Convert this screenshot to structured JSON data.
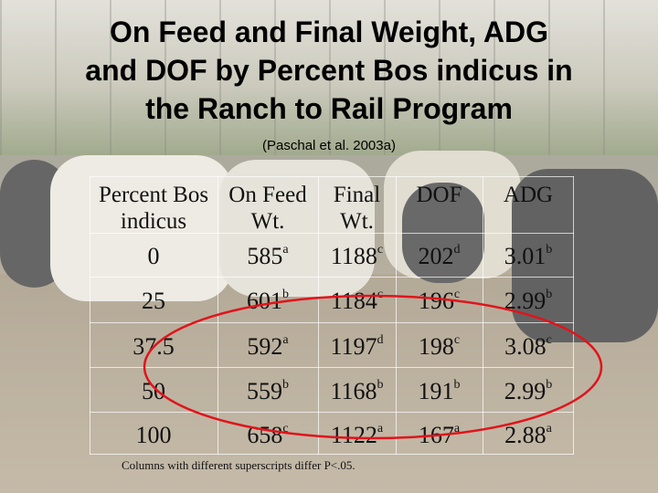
{
  "title_lines": [
    "On Feed and Final Weight, ADG",
    "and DOF by Percent Bos indicus in",
    "the Ranch to Rail Program"
  ],
  "subtitle": "(Paschal et al. 2003a)",
  "table": {
    "headers": [
      [
        "Percent Bos",
        "indicus"
      ],
      [
        "On Feed",
        "Wt."
      ],
      [
        "Final",
        "Wt."
      ],
      [
        "DOF",
        ""
      ],
      [
        "ADG",
        ""
      ]
    ],
    "rows": [
      [
        [
          "0",
          ""
        ],
        [
          "585",
          "a"
        ],
        [
          "1188",
          "c"
        ],
        [
          "202",
          "d"
        ],
        [
          "3.01",
          "b"
        ]
      ],
      [
        [
          "25",
          ""
        ],
        [
          "601",
          "b"
        ],
        [
          "1184",
          "c"
        ],
        [
          "196",
          "c"
        ],
        [
          "2.99",
          "b"
        ]
      ],
      [
        [
          "37.5",
          ""
        ],
        [
          "592",
          "a"
        ],
        [
          "1197",
          "d"
        ],
        [
          "198",
          "c"
        ],
        [
          "3.08",
          "c"
        ]
      ],
      [
        [
          "50",
          ""
        ],
        [
          "559",
          "b"
        ],
        [
          "1168",
          "b"
        ],
        [
          "191",
          "b"
        ],
        [
          "2.99",
          "b"
        ]
      ],
      [
        [
          "100",
          ""
        ],
        [
          "658",
          "c"
        ],
        [
          "1122",
          "a"
        ],
        [
          "167",
          "a"
        ],
        [
          "2.88",
          "a"
        ]
      ]
    ]
  },
  "footnote": "Columns with different superscripts differ P<.05.",
  "colors": {
    "ellipse": "#e0141c",
    "grid": "#ffffff"
  }
}
